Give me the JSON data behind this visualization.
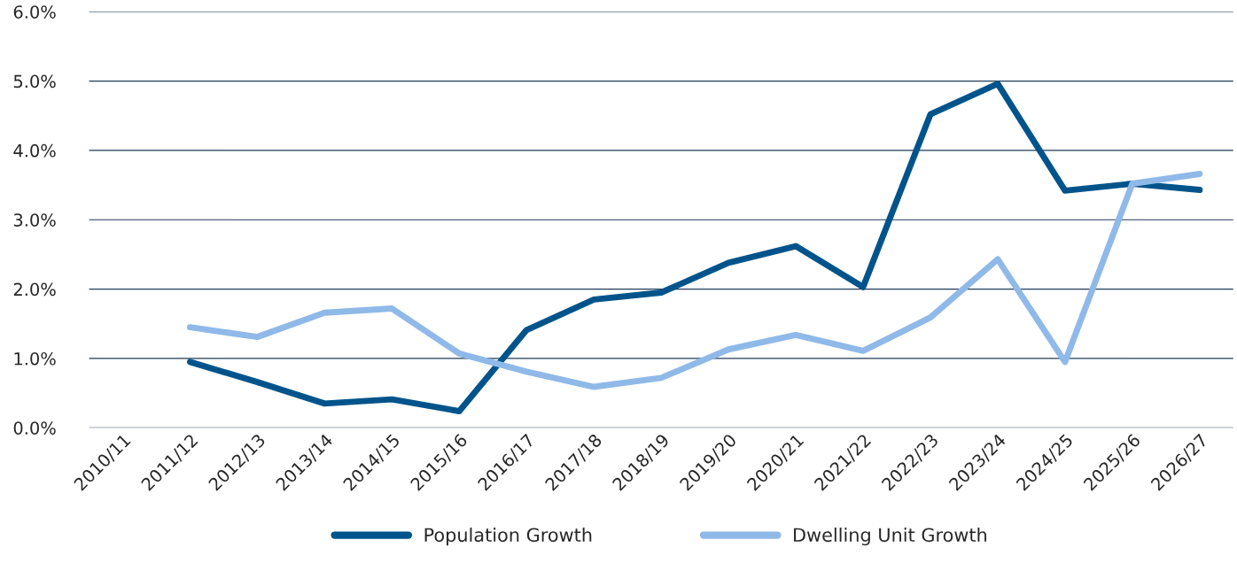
{
  "chart_data": {
    "type": "line",
    "categories": [
      "2010/11",
      "2011/12",
      "2012/13",
      "2013/14",
      "2014/15",
      "2015/16",
      "2016/17",
      "2017/18",
      "2018/19",
      "2019/20",
      "2020/21",
      "2021/22",
      "2022/23",
      "2023/24",
      "2024/25",
      "2025/26",
      "2026/27"
    ],
    "series": [
      {
        "name": "Population Growth",
        "color": "#00548b",
        "values": [
          null,
          0.95,
          0.66,
          0.35,
          0.41,
          0.24,
          1.41,
          1.85,
          1.95,
          2.38,
          2.62,
          2.03,
          4.52,
          4.96,
          3.42,
          3.52,
          3.43
        ]
      },
      {
        "name": "Dwelling Unit Growth",
        "color": "#8fb9e8",
        "values": [
          null,
          1.45,
          1.31,
          1.66,
          1.72,
          1.07,
          0.81,
          0.59,
          0.72,
          1.13,
          1.34,
          1.11,
          1.59,
          2.43,
          0.95,
          3.52,
          3.66
        ]
      }
    ],
    "ylim": [
      0,
      6
    ],
    "yticks": [
      {
        "value": 0,
        "label": "0.0%"
      },
      {
        "value": 1,
        "label": "1.0%"
      },
      {
        "value": 2,
        "label": "2.0%"
      },
      {
        "value": 3,
        "label": "3.0%"
      },
      {
        "value": 4,
        "label": "4.0%"
      },
      {
        "value": 5,
        "label": "5.0%"
      },
      {
        "value": 6,
        "label": "6.0%"
      }
    ],
    "grid": "y",
    "legend": "bottom",
    "marker": "none",
    "line_style": "solid"
  }
}
